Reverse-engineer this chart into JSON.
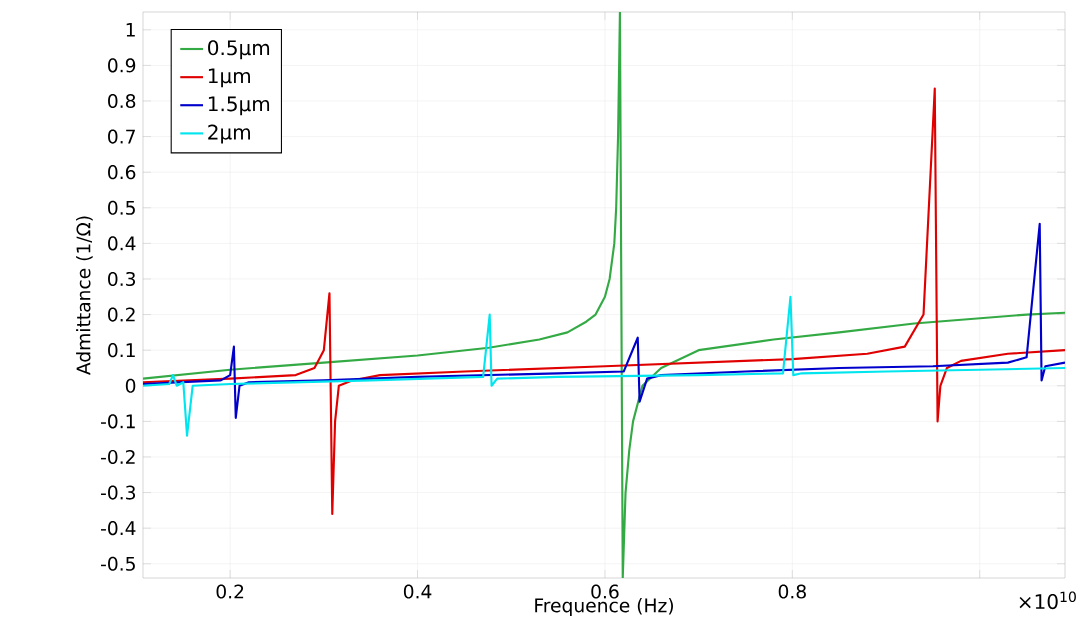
{
  "chart_data": {
    "type": "line",
    "xlabel": "Frequence (Hz)",
    "ylabel": "Admittance (1/Ω)",
    "xlim": [
      0.107,
      1.091
    ],
    "ylim": [
      -0.54,
      1.05
    ],
    "xticks": [
      0.2,
      0.4,
      0.6,
      0.8,
      {
        "value": 1.0,
        "label": null
      }
    ],
    "yticks": [
      -0.5,
      -0.4,
      -0.3,
      -0.2,
      -0.1,
      0,
      0.1,
      0.2,
      0.3,
      0.4,
      0.5,
      0.6,
      0.7,
      0.8,
      0.9,
      1
    ],
    "grid": true,
    "legend": "top left",
    "marker": "none",
    "line_style": "solid",
    "annotations": [
      "×10$^{10}$"
    ],
    "series": [
      {
        "name": "0.5µm",
        "color": "#33aa44",
        "x": [
          0.107,
          0.2,
          0.3,
          0.4,
          0.476,
          0.53,
          0.56,
          0.58,
          0.59,
          0.6,
          0.605,
          0.61,
          0.612,
          0.614,
          0.616,
          0.619,
          0.622,
          0.626,
          0.63,
          0.64,
          0.66,
          0.7,
          0.78,
          0.85,
          0.93,
          1.05,
          1.091
        ],
        "values": [
          0.02,
          0.045,
          0.065,
          0.085,
          0.107,
          0.13,
          0.15,
          0.18,
          0.2,
          0.25,
          0.3,
          0.4,
          0.5,
          0.7,
          1.05,
          -0.54,
          -0.3,
          -0.18,
          -0.1,
          0.0,
          0.05,
          0.1,
          0.13,
          0.15,
          0.175,
          0.2,
          0.205
        ]
      },
      {
        "name": "1µm",
        "color": "#e00000",
        "x": [
          0.107,
          0.2,
          0.27,
          0.29,
          0.3,
          0.306,
          0.309,
          0.312,
          0.316,
          0.33,
          0.36,
          0.45,
          0.6,
          0.7,
          0.8,
          0.88,
          0.92,
          0.94,
          0.952,
          0.955,
          0.958,
          0.965,
          0.98,
          1.03,
          1.091
        ],
        "values": [
          0.01,
          0.02,
          0.03,
          0.05,
          0.1,
          0.26,
          -0.36,
          -0.1,
          0.0,
          0.015,
          0.03,
          0.04,
          0.055,
          0.065,
          0.075,
          0.09,
          0.11,
          0.2,
          0.835,
          -0.1,
          0.0,
          0.05,
          0.07,
          0.09,
          0.1
        ]
      },
      {
        "name": "1.5µm",
        "color": "#0000cc",
        "x": [
          0.107,
          0.19,
          0.2,
          0.204,
          0.206,
          0.21,
          0.22,
          0.3,
          0.4,
          0.55,
          0.62,
          0.635,
          0.637,
          0.645,
          0.66,
          0.75,
          0.85,
          0.95,
          1.03,
          1.05,
          1.064,
          1.066,
          1.07,
          1.091
        ],
        "values": [
          0.005,
          0.015,
          0.03,
          0.11,
          -0.09,
          0.0,
          0.01,
          0.015,
          0.025,
          0.035,
          0.04,
          0.135,
          -0.045,
          0.02,
          0.03,
          0.04,
          0.05,
          0.055,
          0.065,
          0.08,
          0.455,
          0.015,
          0.055,
          0.065
        ]
      },
      {
        "name": "2µm",
        "color": "#00e5ee",
        "x": [
          0.107,
          0.135,
          0.139,
          0.143,
          0.15,
          0.154,
          0.16,
          0.2,
          0.35,
          0.47,
          0.477,
          0.479,
          0.485,
          0.55,
          0.7,
          0.79,
          0.798,
          0.801,
          0.81,
          0.9,
          1.0,
          1.091
        ],
        "values": [
          0.0,
          0.005,
          0.03,
          0.0,
          0.01,
          -0.14,
          0.0,
          0.005,
          0.015,
          0.025,
          0.2,
          0.0,
          0.02,
          0.025,
          0.03,
          0.035,
          0.25,
          0.03,
          0.035,
          0.04,
          0.045,
          0.05
        ]
      }
    ]
  }
}
